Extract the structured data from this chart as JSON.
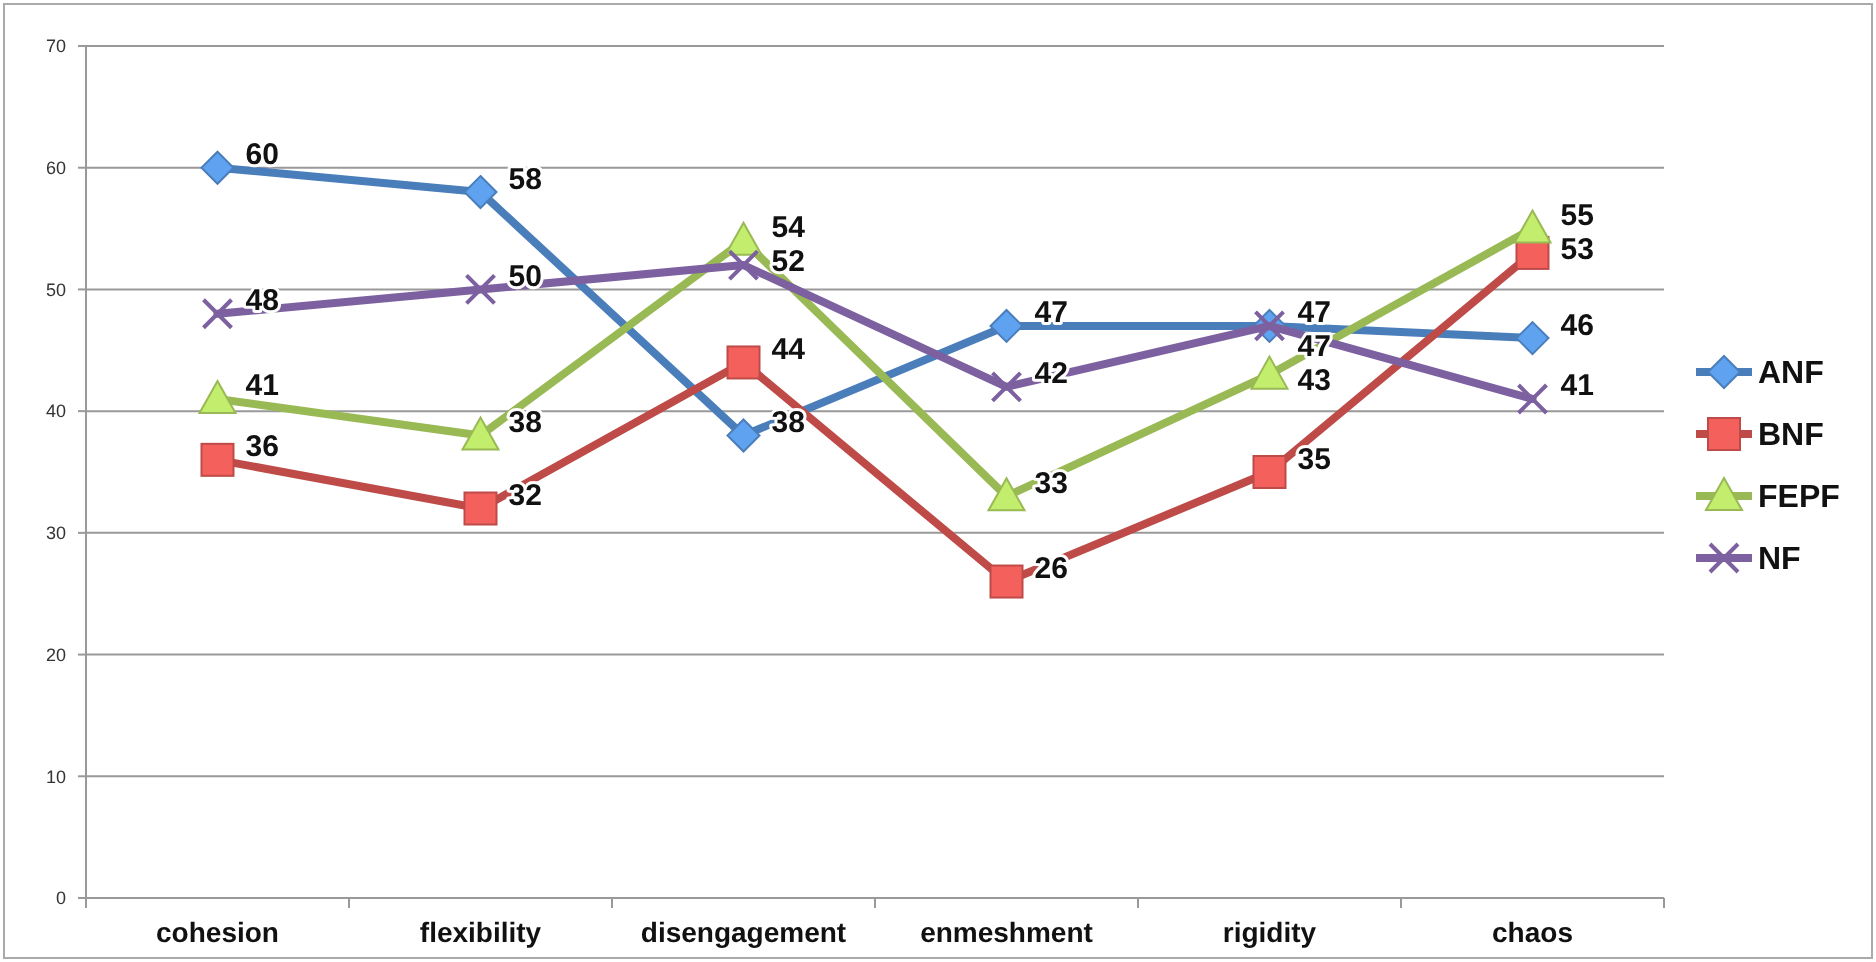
{
  "chart_data": {
    "type": "line",
    "categories": [
      "cohesion",
      "flexibility",
      "disengagement",
      "enmeshment",
      "rigidity",
      "chaos"
    ],
    "series": [
      {
        "name": "ANF",
        "color": "#4a7ebb",
        "marker": "diamond",
        "values": [
          60,
          58,
          38,
          47,
          47,
          46
        ]
      },
      {
        "name": "BNF",
        "color": "#be4b48",
        "marker": "square",
        "values": [
          36,
          32,
          44,
          26,
          35,
          53
        ]
      },
      {
        "name": "FEPF",
        "color": "#98b954",
        "marker": "triangle",
        "values": [
          41,
          38,
          54,
          33,
          43,
          55
        ]
      },
      {
        "name": "NF",
        "color": "#7d60a0",
        "marker": "cross",
        "values": [
          48,
          50,
          52,
          42,
          47,
          41
        ]
      }
    ],
    "ylim": [
      0,
      70
    ],
    "yticks": [
      0,
      10,
      20,
      30,
      40,
      50,
      60,
      70
    ],
    "grid": "y",
    "legend": "right",
    "data_labels": true
  }
}
